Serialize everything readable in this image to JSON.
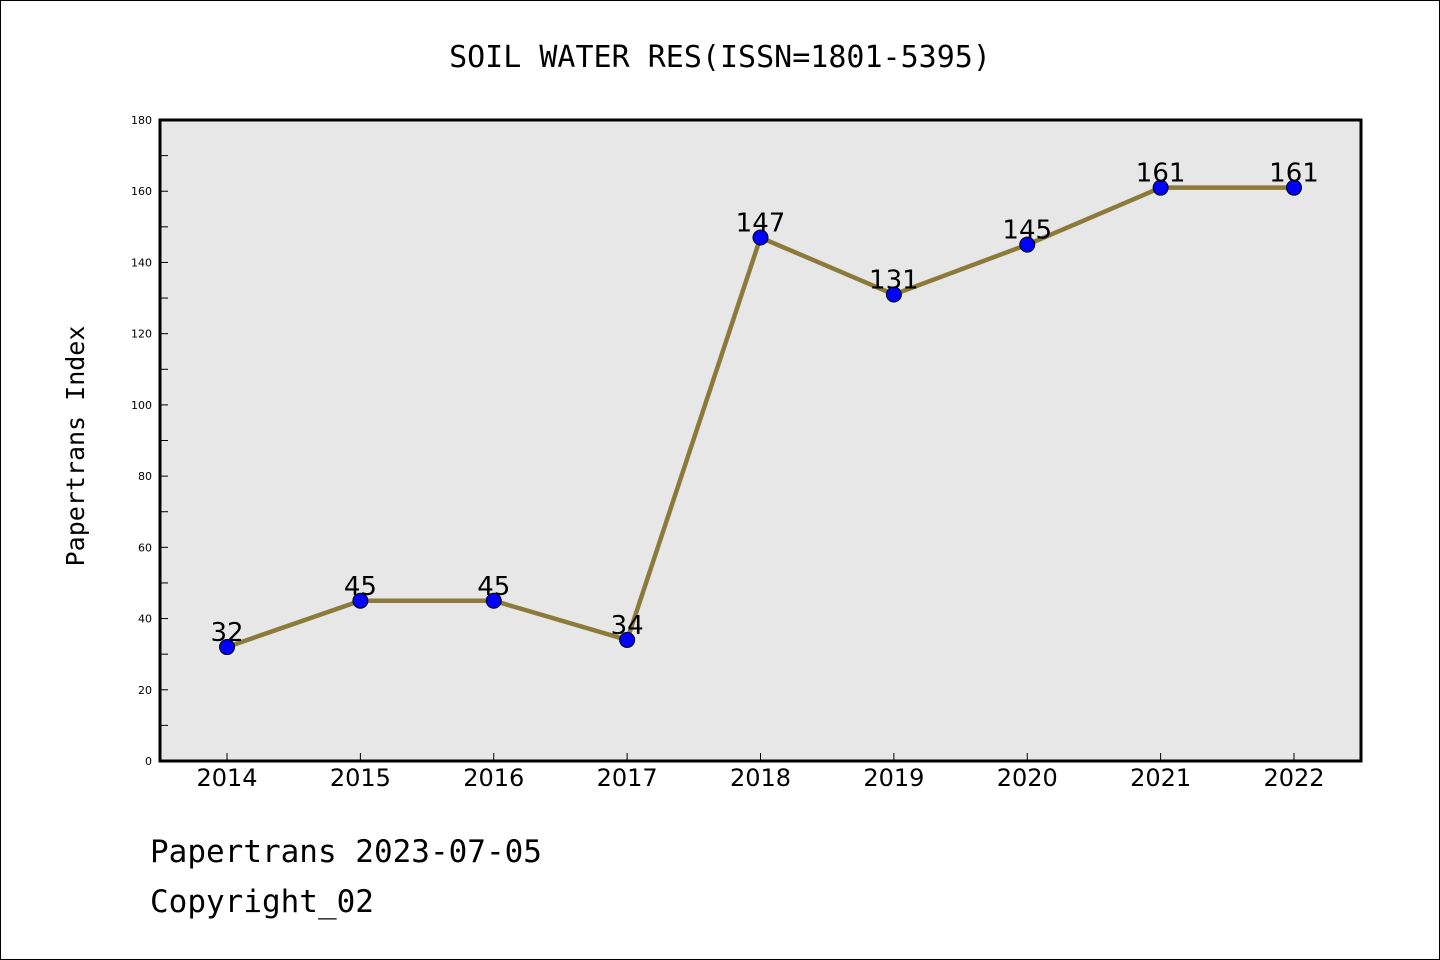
{
  "chart_data": {
    "type": "line",
    "title": "SOIL WATER RES(ISSN=1801-5395)",
    "xlabel": "",
    "ylabel": "Papertrans Index",
    "categories": [
      "2014",
      "2015",
      "2016",
      "2017",
      "2018",
      "2019",
      "2020",
      "2021",
      "2022"
    ],
    "series": [
      {
        "values": [
          32,
          45,
          45,
          34,
          147,
          131,
          145,
          161,
          161
        ]
      }
    ],
    "data_labels": [
      "32",
      "45",
      "45",
      "34",
      "147",
      "131",
      "145",
      "161",
      "161"
    ],
    "ylim": [
      0,
      180
    ],
    "yticks": [
      "0",
      "20",
      "40",
      "60",
      "80",
      "100",
      "120",
      "140",
      "160",
      "180"
    ],
    "grid": false,
    "legend": "none",
    "colors": {
      "line": "#8c7a3a",
      "marker": "#0000ff",
      "plot_background": "#e7e7e7"
    }
  },
  "footer": {
    "date_line": "Papertrans 2023-07-05",
    "copyright": "Copyright_02"
  }
}
